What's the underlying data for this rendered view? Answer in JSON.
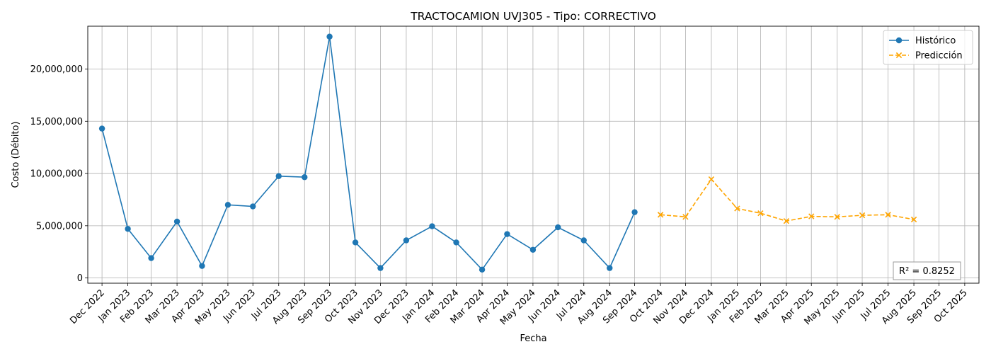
{
  "chart_data": {
    "type": "line",
    "title": "TRACTOCAMION UVJ305 - Tipo: CORRECTIVO",
    "xlabel": "Fecha",
    "ylabel": "Costo (Débito)",
    "grid": true,
    "legend_position": "top-right",
    "x_ticks": [
      "Dec 2022",
      "Jan 2023",
      "Feb 2023",
      "Mar 2023",
      "Apr 2023",
      "May 2023",
      "Jun 2023",
      "Jul 2023",
      "Aug 2023",
      "Sep 2023",
      "Oct 2023",
      "Nov 2023",
      "Dec 2023",
      "Jan 2024",
      "Feb 2024",
      "Mar 2024",
      "Apr 2024",
      "May 2024",
      "Jun 2024",
      "Jul 2024",
      "Aug 2024",
      "Sep 2024",
      "Oct 2024",
      "Nov 2024",
      "Dec 2024",
      "Jan 2025",
      "Feb 2025",
      "Mar 2025",
      "Apr 2025",
      "May 2025",
      "Jun 2025",
      "Jul 2025",
      "Aug 2025",
      "Sep 2025",
      "Oct 2025"
    ],
    "y_ticks": [
      0,
      5000000,
      10000000,
      15000000,
      20000000
    ],
    "y_tick_labels": [
      "0",
      "5,000,000",
      "10,000,000",
      "15,000,000",
      "20,000,000"
    ],
    "ylim": [
      -500000,
      24100000
    ],
    "series": [
      {
        "name": "Histórico",
        "color": "#1f77b4",
        "marker": "circle",
        "line_style": "solid",
        "x": [
          "2022-12-31",
          "2023-01-31",
          "2023-02-28",
          "2023-03-31",
          "2023-04-30",
          "2023-05-31",
          "2023-06-30",
          "2023-07-31",
          "2023-08-31",
          "2023-09-30",
          "2023-10-31",
          "2023-11-30",
          "2023-12-31",
          "2024-01-31",
          "2024-02-29",
          "2024-03-31",
          "2024-04-30",
          "2024-05-31",
          "2024-06-30",
          "2024-07-31",
          "2024-08-31",
          "2024-09-30"
        ],
        "values": [
          14300000,
          4700000,
          1900000,
          5400000,
          1150000,
          7000000,
          6850000,
          9750000,
          9650000,
          23100000,
          3400000,
          950000,
          3600000,
          4950000,
          3400000,
          800000,
          4200000,
          2700000,
          4850000,
          3600000,
          950000,
          6300000
        ]
      },
      {
        "name": "Predicción",
        "color": "#ffa500",
        "marker": "x",
        "line_style": "dashed",
        "x": [
          "2024-10-31",
          "2024-11-30",
          "2024-12-31",
          "2025-01-31",
          "2025-02-28",
          "2025-03-31",
          "2025-04-30",
          "2025-05-31",
          "2025-06-30",
          "2025-07-31",
          "2025-08-31"
        ],
        "values": [
          6050000,
          5850000,
          9450000,
          6650000,
          6200000,
          5450000,
          5900000,
          5850000,
          6000000,
          6050000,
          5600000
        ]
      }
    ],
    "annotation": "R² = 0.8252",
    "annotation_position": "bottom-right"
  }
}
